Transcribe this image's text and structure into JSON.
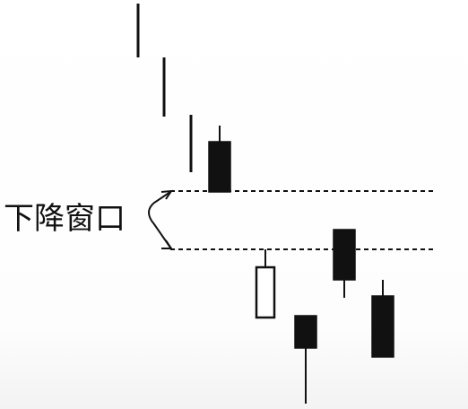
{
  "diagram": {
    "annotation_label": "下降窗口",
    "colors": {
      "ink": "#111111",
      "candle_fill_bearish": "#111111",
      "candle_fill_bullish": "#ffffff",
      "background": "#ffffff"
    },
    "elements": {
      "gap_lines": [
        "upper-gap-line",
        "lower-gap-line"
      ],
      "bracket": "arrow-bracket",
      "candles_before_gap": 4,
      "candles_after_gap": 4
    }
  }
}
